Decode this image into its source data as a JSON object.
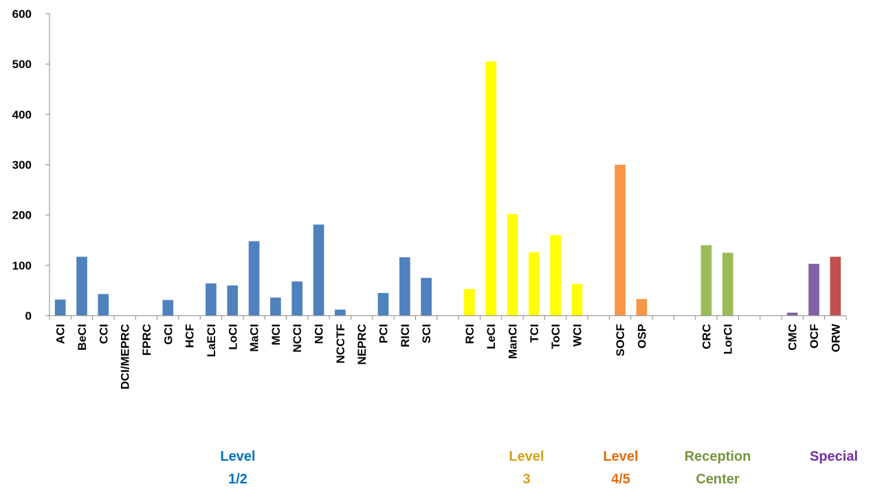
{
  "chart_data": {
    "type": "bar",
    "title": "",
    "xlabel": "",
    "ylabel": "",
    "ylim": [
      0,
      600
    ],
    "yticks": [
      0,
      100,
      200,
      300,
      400,
      500,
      600
    ],
    "grid": false,
    "legend": "none",
    "categories": [
      "ACI",
      "BeCI",
      "CCI",
      "DCI/MEPRC",
      "FPRC",
      "GCI",
      "HCF",
      "LaECI",
      "LoCI",
      "MaCI",
      "MCI",
      "NCCI",
      "NCI",
      "NCCTF",
      "NEPRC",
      "PCI",
      "RICI",
      "SCI",
      "",
      "RCI",
      "LeCI",
      "ManCI",
      "TCI",
      "ToCI",
      "WCI",
      "",
      "SOCF",
      "OSP",
      "",
      "",
      "CRC",
      "LorCI",
      "",
      "",
      "CMC",
      "OCF",
      "ORW"
    ],
    "values": [
      32,
      117,
      43,
      0,
      0,
      31,
      0,
      64,
      60,
      148,
      36,
      68,
      181,
      12,
      0,
      45,
      116,
      75,
      null,
      53,
      505,
      202,
      126,
      160,
      63,
      null,
      300,
      33,
      null,
      null,
      140,
      125,
      null,
      null,
      6,
      103,
      117
    ],
    "colors": [
      "#4f81bd",
      "#4f81bd",
      "#4f81bd",
      "#4f81bd",
      "#4f81bd",
      "#4f81bd",
      "#4f81bd",
      "#4f81bd",
      "#4f81bd",
      "#4f81bd",
      "#4f81bd",
      "#4f81bd",
      "#4f81bd",
      "#4f81bd",
      "#4f81bd",
      "#4f81bd",
      "#4f81bd",
      "#4f81bd",
      null,
      "#ffff00",
      "#ffff00",
      "#ffff00",
      "#ffff00",
      "#ffff00",
      "#ffff00",
      null,
      "#f79646",
      "#f79646",
      null,
      null,
      "#9bbb59",
      "#9bbb59",
      null,
      null,
      "#8064a2",
      "#8064a2",
      "#c0504d"
    ],
    "groups": [
      {
        "line1": "Level",
        "line2": "1/2",
        "color": "#0070c0"
      },
      {
        "line1": "Level",
        "line2": "3",
        "color": "#d4a017"
      },
      {
        "line1": "Level",
        "line2": "4/5",
        "color": "#e46c0a"
      },
      {
        "line1": "Reception",
        "line2": "Center",
        "color": "#77933c"
      },
      {
        "line1": "Special",
        "line2": "",
        "color": "#7030a0"
      }
    ]
  }
}
